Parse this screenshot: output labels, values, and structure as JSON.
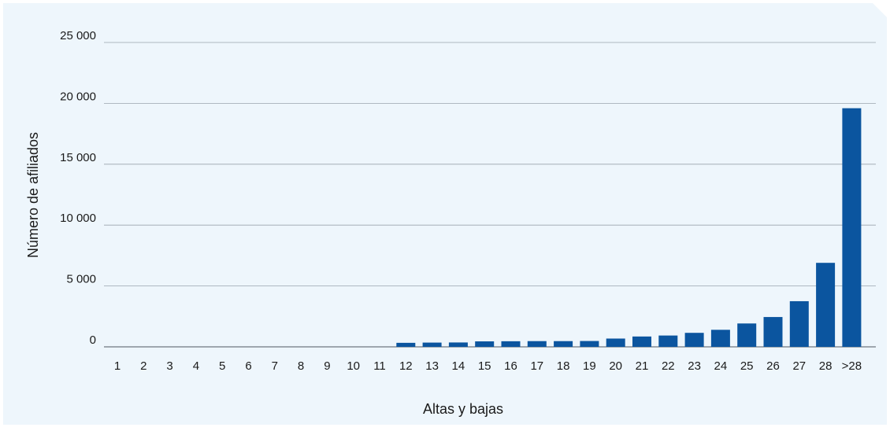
{
  "chart_data": {
    "type": "bar",
    "xlabel": "Altas y bajas",
    "ylabel": "Número de afiliados",
    "ylim": [
      0,
      25000
    ],
    "yticks": [
      0,
      5000,
      10000,
      15000,
      20000,
      25000
    ],
    "ytick_labels": [
      "0",
      "5 000",
      "10 000",
      "15 000",
      "20 000",
      "25 000"
    ],
    "grid": true,
    "bar_color": "#0b559f",
    "categories": [
      "1",
      "2",
      "3",
      "4",
      "5",
      "6",
      "7",
      "8",
      "9",
      "10",
      "11",
      "12",
      "13",
      "14",
      "15",
      "16",
      "17",
      "18",
      "19",
      "20",
      "21",
      "22",
      "23",
      "24",
      "25",
      "26",
      "27",
      "28",
      ">28"
    ],
    "values": [
      0,
      0,
      0,
      0,
      0,
      0,
      0,
      0,
      0,
      0,
      0,
      330,
      350,
      360,
      450,
      460,
      470,
      470,
      480,
      680,
      850,
      930,
      1150,
      1400,
      1920,
      2450,
      3750,
      6900,
      19600
    ]
  }
}
